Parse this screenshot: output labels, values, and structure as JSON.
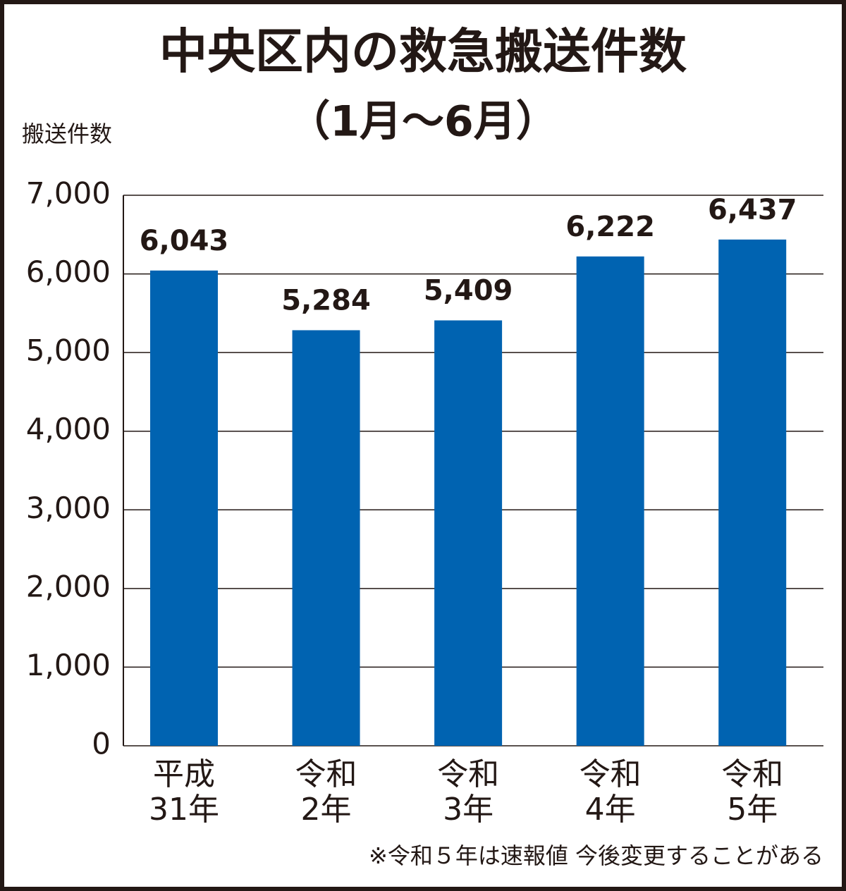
{
  "chart_data": {
    "type": "bar",
    "title": "中央区内の救急搬送件数",
    "subtitle": "（1月〜6月）",
    "y_axis_label": "搬送件数",
    "categories": [
      "平成\n31年",
      "令和\n2年",
      "令和\n3年",
      "令和\n4年",
      "令和\n5年"
    ],
    "values": [
      6043,
      5284,
      5409,
      6222,
      6437
    ],
    "value_labels": [
      "6,043",
      "5,284",
      "5,409",
      "6,222",
      "6,437"
    ],
    "color": "#0063b1",
    "ylim": [
      0,
      7000
    ],
    "yticks": [
      0,
      {
        "value": 1000,
        "label": "1,000"
      },
      {
        "value": 2000,
        "label": "2,000"
      },
      {
        "value": 3000,
        "label": "3,000"
      },
      {
        "value": 4000,
        "label": "4,000"
      },
      {
        "value": 5000,
        "label": "5,000"
      },
      {
        "value": 6000,
        "label": "6,000"
      },
      {
        "value": 7000,
        "label": "7,000"
      }
    ],
    "grid": true,
    "note": "※令和５年は速報値 今後変更することがある"
  }
}
